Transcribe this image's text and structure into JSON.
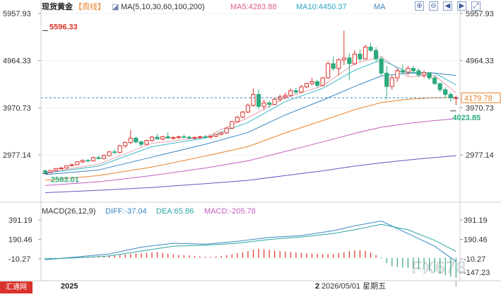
{
  "header": {
    "instrument": "现货黄金",
    "period": "【周线】",
    "ma_params": "MA(5,10,30,60,100,200)",
    "ma5": "MA5:4283.88",
    "ma10": "MA10:4450.37",
    "ma_more": "MA"
  },
  "tool_icons": [
    "zoom-in-icon",
    "zoom-out-icon",
    "pan-left-icon",
    "pan-right-icon",
    "fullscreen-icon"
  ],
  "macd_header": {
    "params": "MACD(26,12,9)",
    "diff": "DIFF:-37.04",
    "dea": "DEA:65.86",
    "macd": "MACD:-205.78"
  },
  "watermark": "FX678",
  "logo_text": "汇通网",
  "bottom": {
    "year_left": "2025",
    "year_mid_prefix": "2",
    "date": "2026/05/01 星期五"
  },
  "colors": {
    "up": "#d9322a",
    "down": "#2daa7c",
    "ma5": "#e8a0b0",
    "ma10": "#3cb8c8",
    "ma30": "#3a86c0",
    "ma60": "#e8822a",
    "ma100": "#c060c0",
    "ma200": "#7050c0",
    "diff": "#3a86c0",
    "dea": "#2aa6a0",
    "current_price": "#e8822a"
  },
  "chart_data": [
    {
      "type": "candlestick",
      "period": "weekly",
      "y_ticks": [
        5957.93,
        4964.33,
        3970.73,
        2977.14
      ],
      "y_tick_labels": [
        "5957.93",
        "4964.33",
        "3970.73",
        "2977.14"
      ],
      "ylim": [
        2500,
        6050
      ],
      "annotations": [
        {
          "text": "5596.33",
          "value": 5596.33,
          "kind": "high"
        },
        {
          "text": "2583.01",
          "value": 2583.01,
          "kind": "low"
        },
        {
          "text": "4023.85",
          "value": 4023.85,
          "kind": "recent-low"
        }
      ],
      "current_price": 4179.78,
      "current_price_label": "4179.78",
      "candles": [
        [
          2640,
          2660,
          2590,
          2610
        ],
        [
          2610,
          2660,
          2583,
          2650
        ],
        [
          2650,
          2700,
          2630,
          2690
        ],
        [
          2690,
          2720,
          2670,
          2700
        ],
        [
          2700,
          2760,
          2690,
          2750
        ],
        [
          2750,
          2790,
          2730,
          2770
        ],
        [
          2770,
          2840,
          2760,
          2830
        ],
        [
          2830,
          2880,
          2800,
          2860
        ],
        [
          2860,
          2890,
          2830,
          2850
        ],
        [
          2850,
          2940,
          2840,
          2920
        ],
        [
          2920,
          2960,
          2880,
          2900
        ],
        [
          2900,
          2990,
          2880,
          2960
        ],
        [
          2960,
          3060,
          2950,
          3040
        ],
        [
          3040,
          3090,
          3000,
          3030
        ],
        [
          3030,
          3190,
          3010,
          3170
        ],
        [
          3170,
          3260,
          3120,
          3240
        ],
        [
          3240,
          3500,
          3200,
          3330
        ],
        [
          3330,
          3360,
          3220,
          3250
        ],
        [
          3250,
          3280,
          3150,
          3200
        ],
        [
          3200,
          3300,
          3180,
          3280
        ],
        [
          3280,
          3380,
          3250,
          3350
        ],
        [
          3350,
          3420,
          3300,
          3310
        ],
        [
          3310,
          3380,
          3280,
          3360
        ],
        [
          3360,
          3450,
          3320,
          3330
        ],
        [
          3330,
          3370,
          3300,
          3340
        ],
        [
          3340,
          3380,
          3310,
          3360
        ],
        [
          3360,
          3400,
          3330,
          3350
        ],
        [
          3350,
          3380,
          3310,
          3330
        ],
        [
          3330,
          3360,
          3300,
          3345
        ],
        [
          3345,
          3380,
          3320,
          3360
        ],
        [
          3360,
          3400,
          3340,
          3350
        ],
        [
          3350,
          3380,
          3320,
          3370
        ],
        [
          3370,
          3420,
          3350,
          3410
        ],
        [
          3410,
          3460,
          3390,
          3440
        ],
        [
          3440,
          3560,
          3420,
          3540
        ],
        [
          3540,
          3690,
          3520,
          3680
        ],
        [
          3680,
          3800,
          3660,
          3770
        ],
        [
          3770,
          3900,
          3750,
          3880
        ],
        [
          3880,
          4060,
          3860,
          4020
        ],
        [
          4020,
          4380,
          3990,
          4250
        ],
        [
          4250,
          4350,
          3940,
          4000
        ],
        [
          4000,
          4140,
          3930,
          4070
        ],
        [
          4070,
          4120,
          3970,
          4040
        ],
        [
          4040,
          4180,
          4020,
          4150
        ],
        [
          4150,
          4250,
          4100,
          4200
        ],
        [
          4200,
          4290,
          4150,
          4230
        ],
        [
          4230,
          4380,
          4200,
          4330
        ],
        [
          4330,
          4390,
          4260,
          4300
        ],
        [
          4300,
          4450,
          4280,
          4410
        ],
        [
          4410,
          4500,
          4380,
          4480
        ],
        [
          4480,
          4600,
          4450,
          4520
        ],
        [
          4520,
          4560,
          4400,
          4440
        ],
        [
          4440,
          4620,
          4420,
          4600
        ],
        [
          4600,
          4950,
          4580,
          4900
        ],
        [
          4900,
          5050,
          4750,
          4800
        ],
        [
          4800,
          5010,
          4650,
          4980
        ],
        [
          4980,
          5596,
          4870,
          5020
        ],
        [
          5020,
          5120,
          4550,
          4900
        ],
        [
          4900,
          5180,
          4860,
          5100
        ],
        [
          5100,
          5200,
          4950,
          5000
        ],
        [
          5000,
          5300,
          4980,
          5250
        ],
        [
          5250,
          5330,
          5150,
          5180
        ],
        [
          5180,
          5250,
          4950,
          5000
        ],
        [
          5000,
          5050,
          4650,
          4700
        ],
        [
          4700,
          4850,
          4150,
          4420
        ],
        [
          4420,
          4650,
          4350,
          4600
        ],
        [
          4600,
          4800,
          4520,
          4750
        ],
        [
          4750,
          4880,
          4680,
          4720
        ],
        [
          4720,
          4850,
          4650,
          4800
        ],
        [
          4800,
          4850,
          4700,
          4750
        ],
        [
          4750,
          4800,
          4620,
          4660
        ],
        [
          4660,
          4760,
          4600,
          4710
        ],
        [
          4710,
          4720,
          4560,
          4600
        ],
        [
          4600,
          4650,
          4450,
          4480
        ],
        [
          4480,
          4500,
          4300,
          4350
        ],
        [
          4350,
          4400,
          4200,
          4250
        ],
        [
          4250,
          4300,
          4100,
          4180
        ],
        [
          4180,
          4230,
          4024,
          4180
        ]
      ],
      "ma_lines": [
        {
          "name": "MA5",
          "color_key": "ma5",
          "values": [
            [
              0,
              2600
            ],
            [
              10,
              2780
            ],
            [
              20,
              3220
            ],
            [
              30,
              3350
            ],
            [
              38,
              3760
            ],
            [
              45,
              4180
            ],
            [
              52,
              4430
            ],
            [
              58,
              4900
            ],
            [
              63,
              5050
            ],
            [
              68,
              4620
            ],
            [
              73,
              4650
            ],
            [
              77,
              4284
            ]
          ]
        },
        {
          "name": "MA10",
          "color_key": "ma10",
          "values": [
            [
              0,
              2590
            ],
            [
              10,
              2740
            ],
            [
              20,
              3150
            ],
            [
              30,
              3330
            ],
            [
              38,
              3660
            ],
            [
              45,
              4100
            ],
            [
              52,
              4380
            ],
            [
              58,
              4760
            ],
            [
              63,
              4980
            ],
            [
              68,
              4720
            ],
            [
              73,
              4700
            ],
            [
              77,
              4450
            ]
          ]
        },
        {
          "name": "MA30",
          "color_key": "ma30",
          "values": [
            [
              0,
              2560
            ],
            [
              10,
              2660
            ],
            [
              20,
              2930
            ],
            [
              30,
              3200
            ],
            [
              38,
              3450
            ],
            [
              45,
              3820
            ],
            [
              52,
              4130
            ],
            [
              58,
              4420
            ],
            [
              63,
              4640
            ],
            [
              68,
              4700
            ],
            [
              73,
              4700
            ],
            [
              77,
              4650
            ]
          ]
        },
        {
          "name": "MA60",
          "color_key": "ma60",
          "values": [
            [
              0,
              2440
            ],
            [
              10,
              2540
            ],
            [
              20,
              2720
            ],
            [
              30,
              2950
            ],
            [
              38,
              3150
            ],
            [
              45,
              3440
            ],
            [
              52,
              3700
            ],
            [
              58,
              3930
            ],
            [
              63,
              4080
            ],
            [
              68,
              4150
            ],
            [
              73,
              4180
            ],
            [
              77,
              4190
            ]
          ]
        },
        {
          "name": "MA100",
          "color_key": "ma100",
          "values": [
            [
              0,
              2330
            ],
            [
              10,
              2410
            ],
            [
              20,
              2540
            ],
            [
              30,
              2700
            ],
            [
              38,
              2850
            ],
            [
              45,
              3050
            ],
            [
              52,
              3250
            ],
            [
              58,
              3430
            ],
            [
              63,
              3560
            ],
            [
              68,
              3640
            ],
            [
              73,
              3700
            ],
            [
              77,
              3740
            ]
          ]
        },
        {
          "name": "MA200",
          "color_key": "ma200",
          "values": [
            [
              0,
              2180
            ],
            [
              10,
              2230
            ],
            [
              20,
              2290
            ],
            [
              30,
              2370
            ],
            [
              38,
              2440
            ],
            [
              45,
              2540
            ],
            [
              52,
              2640
            ],
            [
              58,
              2740
            ],
            [
              63,
              2810
            ],
            [
              68,
              2870
            ],
            [
              73,
              2920
            ],
            [
              77,
              2960
            ]
          ]
        }
      ]
    },
    {
      "type": "macd",
      "params": "MACD(26,12,9)",
      "y_ticks": [
        391.19,
        190.46,
        -10.27,
        -147.23
      ],
      "y_tick_labels_left": [
        "391.19",
        "190.46",
        "-10.27"
      ],
      "y_tick_labels_right": [
        "391.19",
        "190.46",
        "-10.27",
        "-147.23"
      ],
      "ylim": [
        -240,
        470
      ],
      "diff": [
        [
          0,
          -20
        ],
        [
          6,
          10
        ],
        [
          12,
          40
        ],
        [
          18,
          110
        ],
        [
          24,
          150
        ],
        [
          30,
          140
        ],
        [
          36,
          170
        ],
        [
          42,
          210
        ],
        [
          48,
          230
        ],
        [
          54,
          280
        ],
        [
          58,
          330
        ],
        [
          63,
          380
        ],
        [
          68,
          250
        ],
        [
          73,
          120
        ],
        [
          77,
          -37
        ]
      ],
      "dea": [
        [
          0,
          -10
        ],
        [
          6,
          0
        ],
        [
          12,
          20
        ],
        [
          18,
          70
        ],
        [
          24,
          120
        ],
        [
          30,
          130
        ],
        [
          36,
          150
        ],
        [
          42,
          190
        ],
        [
          48,
          215
        ],
        [
          54,
          250
        ],
        [
          58,
          290
        ],
        [
          63,
          345
        ],
        [
          68,
          290
        ],
        [
          73,
          180
        ],
        [
          77,
          66
        ]
      ],
      "histogram": [
        -20,
        -15,
        -10,
        -5,
        0,
        5,
        8,
        10,
        10,
        10,
        14,
        18,
        22,
        25,
        30,
        35,
        40,
        45,
        48,
        50,
        55,
        60,
        50,
        42,
        35,
        30,
        28,
        25,
        20,
        15,
        12,
        12,
        15,
        20,
        28,
        38,
        48,
        58,
        70,
        85,
        95,
        90,
        82,
        75,
        70,
        65,
        60,
        55,
        50,
        46,
        44,
        40,
        38,
        36,
        40,
        48,
        58,
        68,
        75,
        80,
        72,
        55,
        30,
        -10,
        -55,
        -85,
        -95,
        -100,
        -105,
        -110,
        -118,
        -125,
        -135,
        -150,
        -165,
        -180,
        -195,
        -206
      ]
    }
  ]
}
